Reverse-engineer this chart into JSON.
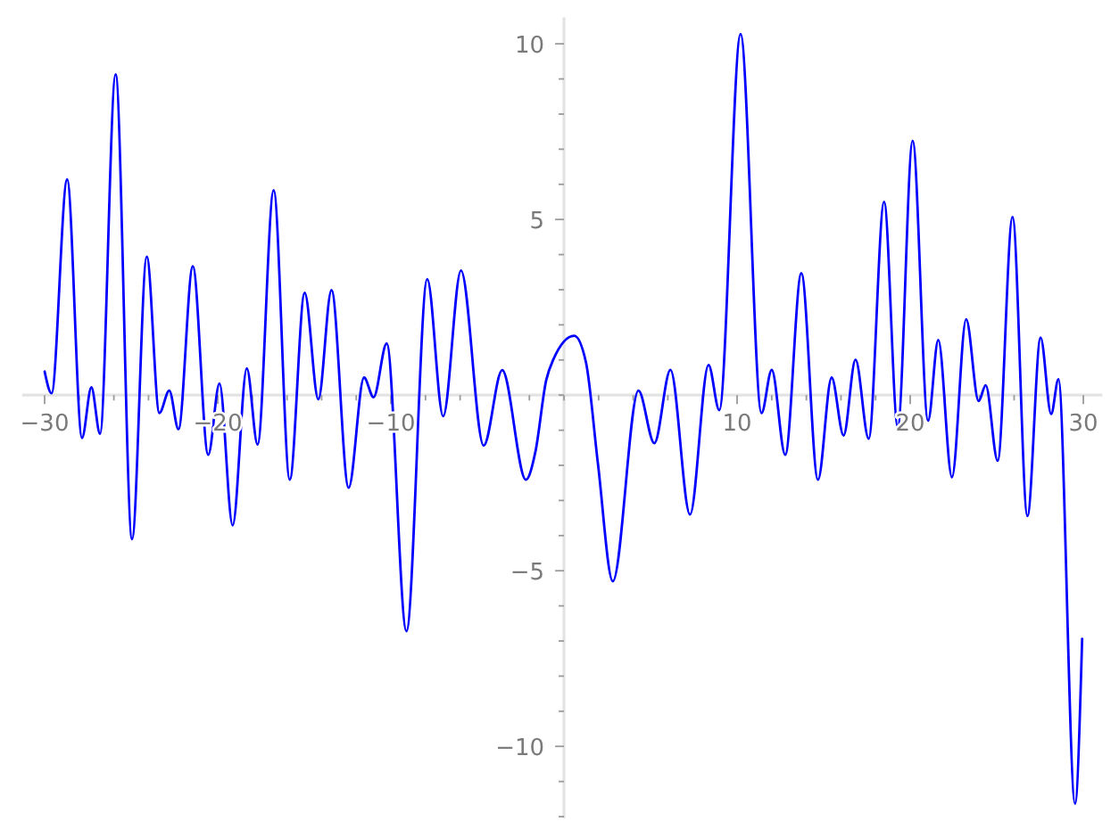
{
  "chart_data": {
    "type": "line",
    "color": "#0000ff",
    "x": [
      -30,
      -29.6,
      -28.7,
      -27.84,
      -27.3,
      -26.8,
      -25.9,
      -24.95,
      -24.1,
      -23.37,
      -22.8,
      -22.27,
      -21.44,
      -20.55,
      -19.9,
      -19.14,
      -18.32,
      -17.7,
      -16.77,
      -15.84,
      -14.98,
      -14.19,
      -13.43,
      -12.44,
      -11.55,
      -11.0,
      -10.24,
      -9.1,
      -7.9,
      -6.98,
      -5.95,
      -4.64,
      -3.57,
      -2.2,
      -1.65,
      -1.03,
      -0.62,
      0.59,
      1.27,
      1.96,
      2.82,
      4.3,
      5.22,
      6.15,
      7.28,
      8.35,
      8.97,
      10.2,
      11.41,
      12.0,
      12.78,
      13.71,
      14.67,
      15.46,
      16.15,
      16.84,
      17.6,
      18.49,
      19.28,
      20.14,
      21.03,
      21.62,
      22.41,
      23.23,
      23.95,
      24.36,
      25.05,
      25.91,
      26.77,
      27.53,
      28.14,
      28.56,
      29.52,
      29.93
    ],
    "values": [
      0.67,
      0.05,
      6.14,
      -1.22,
      0.22,
      -1.1,
      9.13,
      -4.1,
      3.94,
      -0.51,
      0.13,
      -0.97,
      3.67,
      -1.7,
      0.33,
      -3.71,
      0.76,
      -1.41,
      5.83,
      -2.41,
      2.91,
      -0.12,
      2.99,
      -2.64,
      0.5,
      -0.06,
      1.47,
      -6.72,
      3.3,
      -0.6,
      3.55,
      -1.44,
      0.71,
      -2.41,
      -1.61,
      0.42,
      1.01,
      1.69,
      0.93,
      -1.95,
      -5.3,
      0.13,
      -1.37,
      0.72,
      -3.4,
      0.86,
      -0.43,
      10.28,
      -0.51,
      0.72,
      -1.7,
      3.47,
      -2.41,
      0.5,
      -1.15,
      1.01,
      -1.24,
      5.5,
      -0.9,
      7.24,
      -0.73,
      1.57,
      -2.34,
      2.16,
      -0.17,
      0.28,
      -1.87,
      5.07,
      -3.44,
      1.64,
      -0.54,
      0.45,
      -11.63,
      -6.94
    ],
    "xlim": [
      -31.3,
      31.1
    ],
    "ylim": [
      -12.05,
      10.75
    ],
    "xticks": [
      {
        "value": -30,
        "label": "−30"
      },
      {
        "value": -28,
        "label": null
      },
      {
        "value": -26,
        "label": null
      },
      {
        "value": -24,
        "label": null
      },
      {
        "value": -22,
        "label": null
      },
      {
        "value": -20,
        "label": "−20"
      },
      {
        "value": -18,
        "label": null
      },
      {
        "value": -16,
        "label": null
      },
      {
        "value": -14,
        "label": null
      },
      {
        "value": -12,
        "label": null
      },
      {
        "value": -10,
        "label": "−10"
      },
      {
        "value": -8,
        "label": null
      },
      {
        "value": -6,
        "label": null
      },
      {
        "value": -4,
        "label": null
      },
      {
        "value": -2,
        "label": null
      },
      {
        "value": 0,
        "label": null
      },
      {
        "value": 2,
        "label": null
      },
      {
        "value": 4,
        "label": null
      },
      {
        "value": 6,
        "label": null
      },
      {
        "value": 8,
        "label": null
      },
      10,
      {
        "value": 12,
        "label": null
      },
      {
        "value": 14,
        "label": null
      },
      {
        "value": 16,
        "label": null
      },
      {
        "value": 18,
        "label": null
      },
      20,
      {
        "value": 22,
        "label": null
      },
      {
        "value": 24,
        "label": null
      },
      {
        "value": 26,
        "label": null
      },
      {
        "value": 28,
        "label": null
      },
      30
    ],
    "yticks": [
      {
        "value": -12,
        "label": null
      },
      {
        "value": -11,
        "label": null
      },
      {
        "value": -10,
        "label": "−10"
      },
      {
        "value": -9,
        "label": null
      },
      {
        "value": -8,
        "label": null
      },
      {
        "value": -7,
        "label": null
      },
      {
        "value": -6,
        "label": null
      },
      {
        "value": -5,
        "label": "−5"
      },
      {
        "value": -4,
        "label": null
      },
      {
        "value": -3,
        "label": null
      },
      {
        "value": -2,
        "label": null
      },
      {
        "value": -1,
        "label": null
      },
      {
        "value": 0,
        "label": null
      },
      {
        "value": 1,
        "label": null
      },
      {
        "value": 2,
        "label": null
      },
      {
        "value": 3,
        "label": null
      },
      {
        "value": 4,
        "label": null
      },
      5,
      {
        "value": 6,
        "label": null
      },
      {
        "value": 7,
        "label": null
      },
      {
        "value": 8,
        "label": null
      },
      {
        "value": 9,
        "label": null
      },
      10
    ]
  }
}
